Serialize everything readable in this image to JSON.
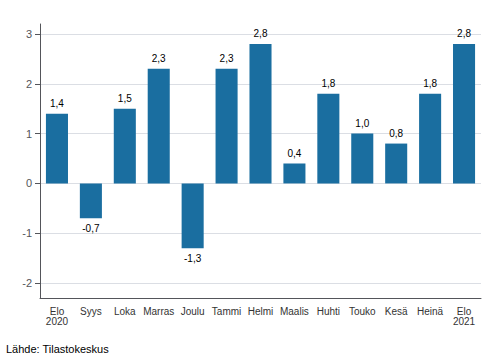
{
  "chart_data": {
    "type": "bar",
    "categories": [
      "Elo\n2020",
      "Syys",
      "Loka",
      "Marras",
      "Joulu",
      "Tammi",
      "Helmi",
      "Maalis",
      "Huhti",
      "Touko",
      "Kesä",
      "Heinä",
      "Elo\n2021"
    ],
    "values": [
      1.4,
      -0.7,
      1.5,
      2.3,
      -1.3,
      2.3,
      2.8,
      0.4,
      1.8,
      1.0,
      0.8,
      1.8,
      2.8
    ],
    "value_labels": [
      "1,4",
      "-0,7",
      "1,5",
      "2,3",
      "-1,3",
      "2,3",
      "2,8",
      "0,4",
      "1,8",
      "1,0",
      "0,8",
      "1,8",
      "2,8"
    ],
    "data_labels": true,
    "color": "#1a6ea0",
    "ylim": [
      -2.3,
      3.2
    ],
    "yticks": [
      -2,
      -1,
      0,
      1,
      2,
      3
    ],
    "grid": true,
    "annotation": "Lähde: Tilastokeskus"
  }
}
